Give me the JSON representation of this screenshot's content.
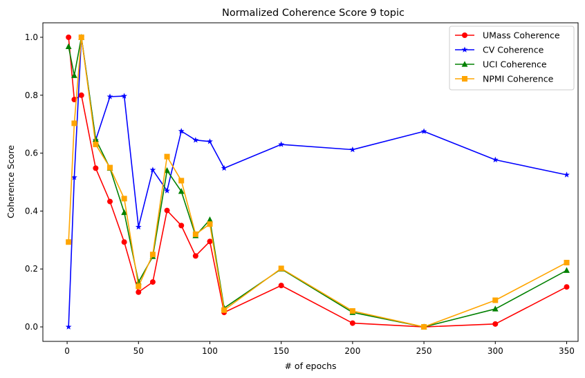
{
  "chart_data": {
    "type": "line",
    "title": "Normalized Coherence Score 9 topic",
    "xlabel": "# of epochs",
    "ylabel": "Coherence Score",
    "xlim": [
      -17,
      358
    ],
    "ylim": [
      -0.05,
      1.05
    ],
    "xticks": [
      0,
      50,
      100,
      150,
      200,
      250,
      300,
      350
    ],
    "yticks": [
      0.0,
      0.2,
      0.4,
      0.6,
      0.8,
      1.0
    ],
    "x": [
      1,
      5,
      10,
      20,
      30,
      40,
      50,
      60,
      70,
      80,
      90,
      100,
      110,
      150,
      200,
      250,
      300,
      350
    ],
    "grid": false,
    "legend_position": "top-right",
    "series": [
      {
        "name": "UMass Coherence",
        "color": "#ff0000",
        "marker": "circle",
        "values": [
          1.0,
          0.785,
          0.8,
          0.548,
          0.433,
          0.293,
          0.12,
          0.155,
          0.402,
          0.35,
          0.245,
          0.295,
          0.05,
          0.143,
          0.013,
          0.0,
          0.01,
          0.138
        ]
      },
      {
        "name": "CV Coherence",
        "color": "#0000ff",
        "marker": "star",
        "values": [
          0.0,
          0.516,
          1.0,
          0.645,
          0.795,
          0.797,
          0.345,
          0.542,
          0.47,
          0.676,
          0.645,
          0.64,
          0.548,
          0.63,
          0.612,
          0.675,
          0.577,
          0.525
        ]
      },
      {
        "name": "UCI Coherence",
        "color": "#008000",
        "marker": "triangle",
        "values": [
          0.968,
          0.868,
          1.0,
          0.648,
          0.548,
          0.395,
          0.155,
          0.243,
          0.54,
          0.468,
          0.315,
          0.37,
          0.065,
          0.2,
          0.05,
          0.0,
          0.062,
          0.195
        ]
      },
      {
        "name": "NPMI Coherence",
        "color": "#ffa500",
        "marker": "square",
        "values": [
          0.293,
          0.703,
          1.0,
          0.63,
          0.55,
          0.443,
          0.14,
          0.25,
          0.588,
          0.505,
          0.32,
          0.355,
          0.058,
          0.202,
          0.055,
          0.0,
          0.092,
          0.222
        ]
      }
    ]
  }
}
